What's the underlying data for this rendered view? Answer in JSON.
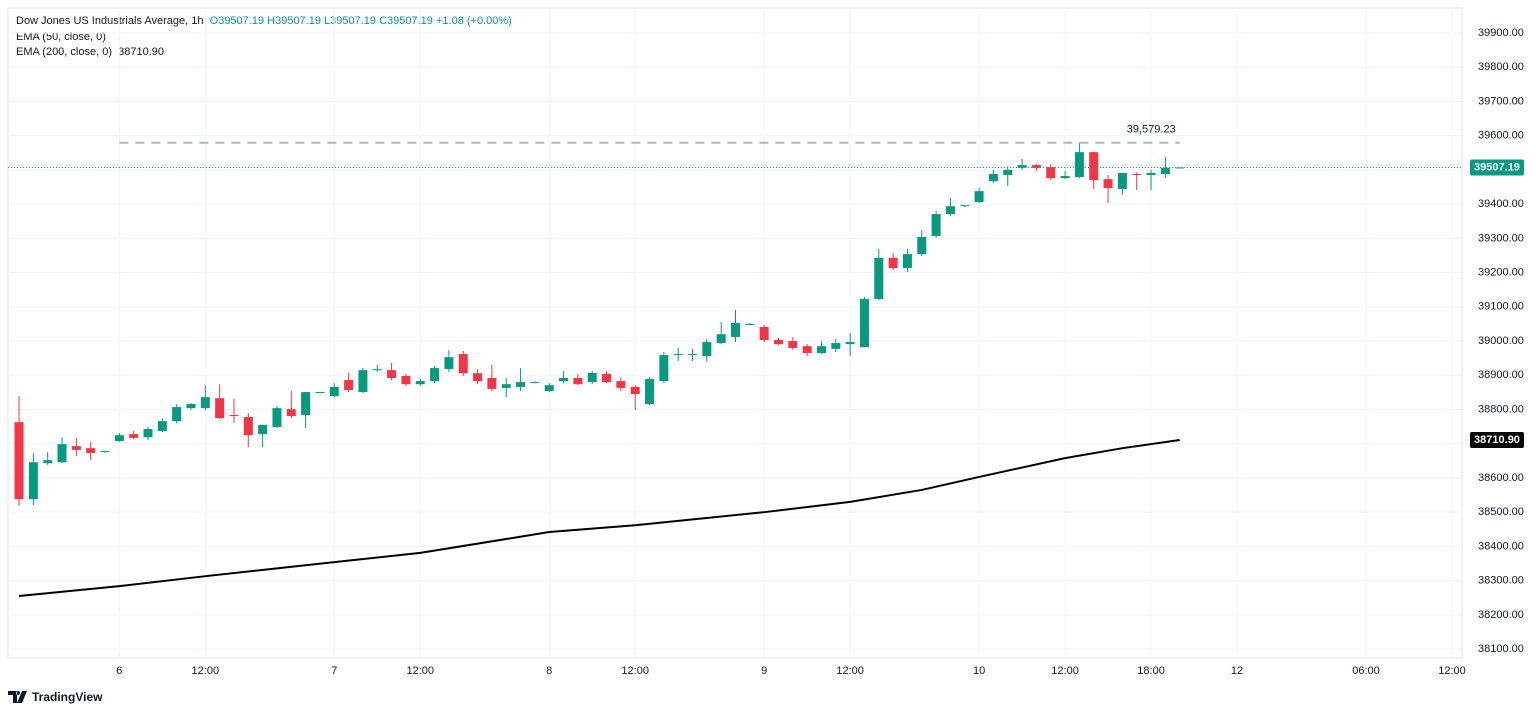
{
  "chart_data": {
    "type": "candlestick",
    "title": "Dow Jones US Industrials Average, 1h",
    "quote": [
      "O39507.19",
      "H39507.19",
      "L39507.19",
      "C39507.19",
      "+1.08 (+0.00%)"
    ],
    "indicators": [
      "EMA (50, close, 0)",
      "EMA (200, close, 0)"
    ],
    "brand": "TradingView",
    "up_color": "#089981",
    "down_color": "#f23645",
    "grid": true,
    "xlim": [
      -0.77,
      100.7
    ],
    "xticks": [
      {
        "value": 7,
        "label": "6"
      },
      {
        "value": 13,
        "label": "12:00"
      },
      {
        "value": 22,
        "label": "7"
      },
      {
        "value": 28,
        "label": "12:00"
      },
      {
        "value": 37,
        "label": "8"
      },
      {
        "value": 43,
        "label": "12:00"
      },
      {
        "value": 52,
        "label": "9"
      },
      {
        "value": 58,
        "label": "12:00"
      },
      {
        "value": 67,
        "label": "10"
      },
      {
        "value": 73,
        "label": "12:00"
      },
      {
        "value": 79,
        "label": "18:00"
      },
      {
        "value": 85,
        "label": "12"
      },
      {
        "value": 94,
        "label": "06:00"
      },
      {
        "value": 100,
        "label": "12:00"
      }
    ],
    "ylim": [
      38074,
      39973
    ],
    "yticks": [
      {
        "value": 38100,
        "label": "38100.00"
      },
      {
        "value": 38200,
        "label": "38200.00"
      },
      {
        "value": 38300,
        "label": "38300.00"
      },
      {
        "value": 38400,
        "label": "38400.00"
      },
      {
        "value": 38500,
        "label": "38500.00"
      },
      {
        "value": 38600,
        "label": "38600.00"
      },
      {
        "value": 38700,
        "label": "38700.00"
      },
      {
        "value": 38800,
        "label": "38800.00"
      },
      {
        "value": 38900,
        "label": "38900.00"
      },
      {
        "value": 39000,
        "label": "39000.00"
      },
      {
        "value": 39100,
        "label": "39100.00"
      },
      {
        "value": 39200,
        "label": "39200.00"
      },
      {
        "value": 39300,
        "label": "39300.00"
      },
      {
        "value": 39400,
        "label": "39400.00"
      },
      {
        "value": 39500,
        "label": "39500.00"
      },
      {
        "value": 39600,
        "label": "39600.00"
      },
      {
        "value": 39700,
        "label": "39700.00"
      },
      {
        "value": 39800,
        "label": "39800.00"
      },
      {
        "value": 39900,
        "label": "39900.00"
      }
    ],
    "x": [
      0,
      1,
      2,
      3,
      4,
      5,
      6,
      7,
      8,
      9,
      10,
      11,
      12,
      13,
      14,
      15,
      16,
      17,
      18,
      19,
      20,
      21,
      22,
      23,
      24,
      25,
      26,
      27,
      28,
      29,
      30,
      31,
      32,
      33,
      34,
      35,
      36,
      37,
      38,
      39,
      40,
      41,
      42,
      43,
      44,
      45,
      46,
      47,
      48,
      49,
      50,
      51,
      52,
      53,
      54,
      55,
      56,
      57,
      58,
      59,
      60,
      61,
      62,
      63,
      64,
      65,
      66,
      67,
      68,
      69,
      70,
      71,
      72,
      73,
      74,
      75,
      76,
      77,
      78,
      79,
      80,
      81
    ],
    "open": [
      38763,
      38538,
      38643,
      38646,
      38693,
      38687,
      38676,
      38708,
      38728,
      38719,
      38737,
      38766,
      38804,
      38804,
      38833,
      38784,
      38778,
      38728,
      38749,
      38801,
      38784,
      38851,
      38839,
      38886,
      38851,
      38915,
      38915,
      38898,
      38874,
      38883,
      38918,
      38962,
      38906,
      38892,
      38863,
      38866,
      38880,
      38854,
      38883,
      38892,
      38880,
      38904,
      38883,
      38866,
      38816,
      38883,
      38959,
      38962,
      38956,
      38994,
      39012,
      39050,
      39041,
      39003,
      39000,
      38985,
      38965,
      38977,
      38991,
      38982,
      39123,
      39243,
      39213,
      39254,
      39307,
      39371,
      39394,
      39406,
      39467,
      39485,
      39506,
      39514,
      39508,
      39476,
      39479,
      39552,
      39473,
      39444,
      39488,
      39485,
      39488,
      39507.19
    ],
    "high": [
      38839,
      38673,
      38676,
      38719,
      38717,
      38705,
      38679,
      38731,
      38737,
      38749,
      38775,
      38816,
      38819,
      38871,
      38874,
      38831,
      38790,
      38755,
      38810,
      38854,
      38851,
      38851,
      38877,
      38907,
      38921,
      38930,
      38936,
      38904,
      38889,
      38927,
      38974,
      38971,
      38918,
      38930,
      38892,
      38921,
      38883,
      38877,
      38912,
      38904,
      38912,
      38912,
      38892,
      38871,
      38895,
      38968,
      38980,
      38977,
      39006,
      39056,
      39091,
      39053,
      39047,
      39009,
      39012,
      38991,
      39000,
      39006,
      39023,
      39129,
      39269,
      39257,
      39269,
      39324,
      39380,
      39418,
      39397,
      39447,
      39500,
      39511,
      39532,
      39517,
      39517,
      39497,
      39579,
      39552,
      39485,
      39491,
      39494,
      39500,
      39538,
      39507.19
    ],
    "low": [
      38518,
      38521,
      38638,
      38643,
      38664,
      38652,
      38673,
      38705,
      38714,
      38711,
      38734,
      38760,
      38798,
      38798,
      38772,
      38760,
      38690,
      38690,
      38746,
      38775,
      38746,
      38848,
      38836,
      38851,
      38848,
      38909,
      38886,
      38869,
      38869,
      38877,
      38909,
      38898,
      38874,
      38854,
      38836,
      38854,
      38877,
      38851,
      38877,
      38871,
      38874,
      38877,
      38854,
      38798,
      38813,
      38877,
      38942,
      38942,
      38939,
      38991,
      38997,
      39047,
      38997,
      38988,
      38974,
      38956,
      38962,
      38968,
      38956,
      38982,
      39120,
      39207,
      39202,
      39248,
      39301,
      39365,
      39391,
      39403,
      39462,
      39453,
      39500,
      39497,
      39470,
      39473,
      39476,
      39444,
      39403,
      39427,
      39441,
      39441,
      39476,
      39507.19
    ],
    "close": [
      38538,
      38646,
      38652,
      38699,
      38682,
      38673,
      38679,
      38725,
      38717,
      38743,
      38766,
      38807,
      38816,
      38836,
      38775,
      38781,
      38725,
      38755,
      38804,
      38781,
      38851,
      38851,
      38866,
      38857,
      38915,
      38918,
      38892,
      38874,
      38883,
      38921,
      38953,
      38906,
      38883,
      38860,
      38874,
      38880,
      38880,
      38871,
      38892,
      38874,
      38907,
      38880,
      38863,
      38845,
      38889,
      38959,
      38962,
      38962,
      38997,
      39020,
      39053,
      39050,
      39003,
      38991,
      38980,
      38965,
      38985,
      38994,
      38997,
      39123,
      39243,
      39213,
      39254,
      39304,
      39371,
      39394,
      39397,
      39438,
      39488,
      39500,
      39514,
      39506,
      39476,
      39482,
      39552,
      39470,
      39447,
      39491,
      39485,
      39491,
      39506,
      39507.19
    ],
    "series": [
      {
        "name": "EMA (200, close, 0)",
        "color": "#000000",
        "x": [
          0,
          7,
          13,
          22,
          28,
          37,
          43,
          52,
          58,
          63,
          67,
          73,
          77,
          81
        ],
        "values": [
          38255,
          38284,
          38313,
          38354,
          38381,
          38442,
          38462,
          38500,
          38530,
          38565,
          38603,
          38658,
          38687,
          38710.9
        ],
        "value_labels": [
          null,
          null,
          null,
          null,
          null,
          null,
          null,
          null,
          null,
          null,
          null,
          null,
          null,
          "38710.90"
        ]
      }
    ],
    "price_line": {
      "value": 39507.19,
      "label": "39507.19",
      "color": "#089981"
    },
    "high_line": {
      "value": 39579.23,
      "label": "39,579.23",
      "from": 7,
      "to": 81
    }
  }
}
